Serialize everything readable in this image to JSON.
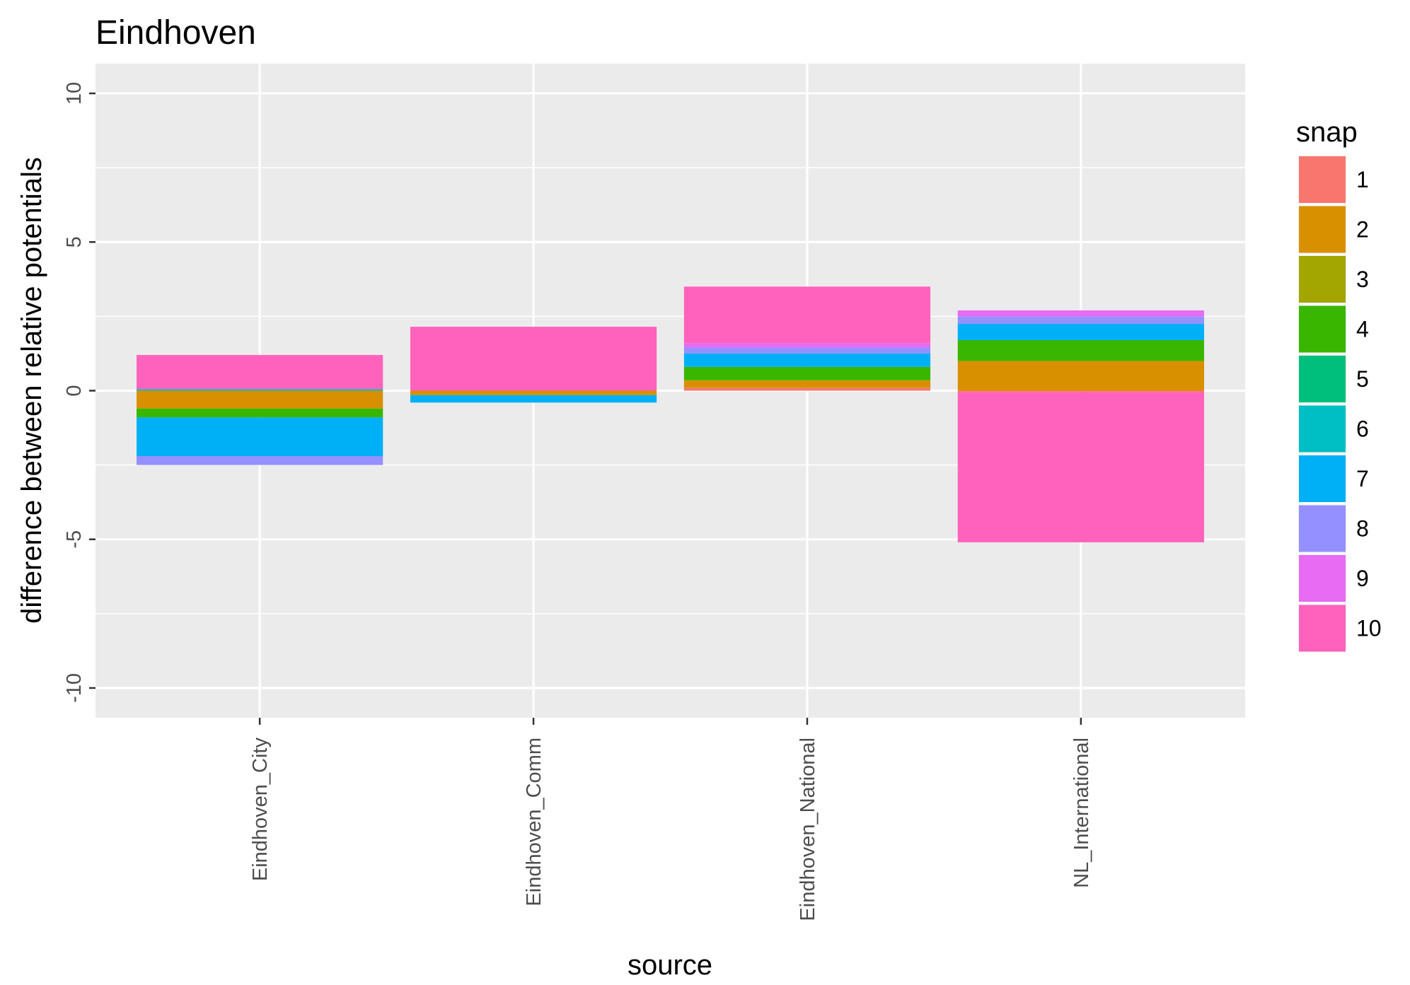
{
  "chart_data": {
    "type": "bar",
    "stacked": true,
    "title": "Eindhoven",
    "xlabel": "source",
    "ylabel": "difference between relative potentials",
    "ylim": [
      -11,
      11
    ],
    "yticks": [
      -10,
      -5,
      0,
      5,
      10
    ],
    "ytick_labels": [
      "-10",
      "-5",
      "0",
      "5",
      "10"
    ],
    "grid": true,
    "legend": {
      "title": "snap",
      "position": "right"
    },
    "categories": [
      "Eindhoven_City",
      "Eindhoven_Comm",
      "Eindhoven_National",
      "NL_International"
    ],
    "series": [
      {
        "name": "1",
        "color": "#F8766D",
        "values": [
          0.0,
          0.0,
          0.1,
          -0.05
        ]
      },
      {
        "name": "2",
        "color": "#D89000",
        "values": [
          -0.6,
          -0.15,
          0.25,
          1.0
        ]
      },
      {
        "name": "3",
        "color": "#A3A500",
        "values": [
          0.0,
          0.0,
          0.0,
          0.0
        ]
      },
      {
        "name": "4",
        "color": "#39B600",
        "values": [
          -0.3,
          0.0,
          0.45,
          0.7
        ]
      },
      {
        "name": "5",
        "color": "#00BF7D",
        "values": [
          0.0,
          0.0,
          0.0,
          0.0
        ]
      },
      {
        "name": "6",
        "color": "#00BFC4",
        "values": [
          0.05,
          0.0,
          0.0,
          0.0
        ]
      },
      {
        "name": "7",
        "color": "#00B0F6",
        "values": [
          -1.3,
          -0.25,
          0.45,
          0.55
        ]
      },
      {
        "name": "8",
        "color": "#9590FF",
        "values": [
          -0.3,
          0.0,
          0.2,
          0.25
        ]
      },
      {
        "name": "9",
        "color": "#E76BF3",
        "values": [
          0.0,
          0.0,
          0.15,
          0.2
        ]
      },
      {
        "name": "10",
        "color": "#FF62BC",
        "values": [
          1.15,
          2.15,
          1.9,
          -5.05
        ]
      }
    ]
  }
}
